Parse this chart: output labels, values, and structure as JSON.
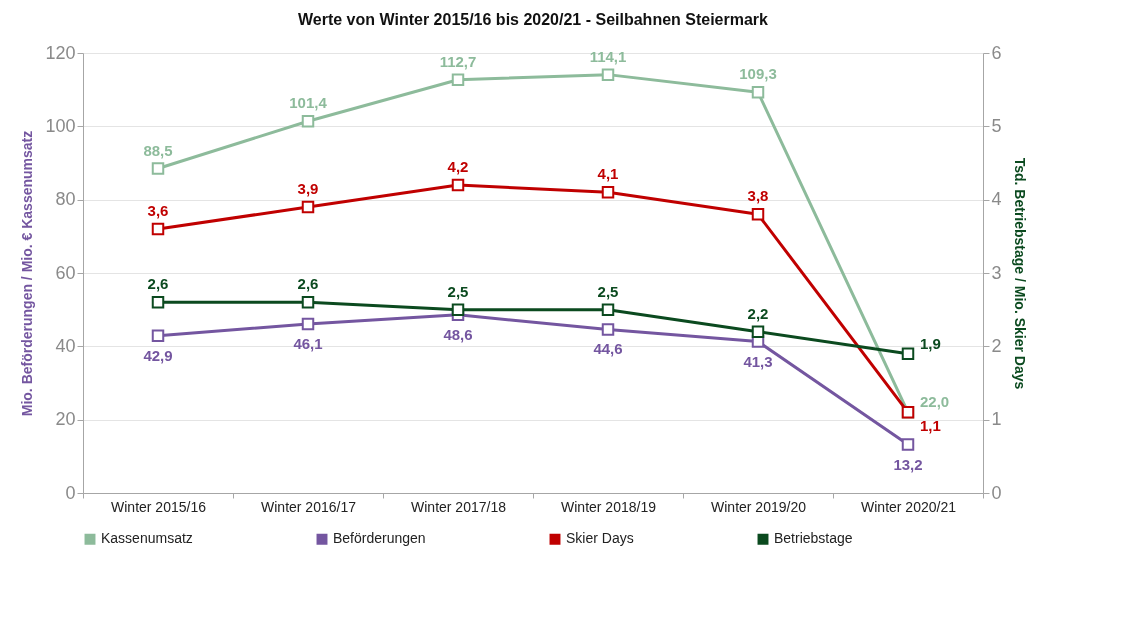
{
  "chart_data": {
    "type": "line",
    "title": "Werte von Winter 2015/16 bis 2020/21 - Seilbahnen Steiermark",
    "ylabel": "Mio. Beförderungen / Mio. € Kassenumsatz",
    "y2label": "Tsd. Betriebstage / Mio. Skier Days",
    "categories": [
      "Winter 2015/16",
      "Winter 2016/17",
      "Winter 2017/18",
      "Winter 2018/19",
      "Winter 2019/20",
      "Winter 2020/21"
    ],
    "series": [
      {
        "name": "Kassenumsatz",
        "color": "#8dbb9b",
        "values": [
          88.5,
          101.4,
          112.7,
          114.1,
          109.3,
          22.0
        ],
        "value_labels": [
          "88,5",
          "101,4",
          "112,7",
          "114,1",
          "109,3",
          "22,0"
        ]
      },
      {
        "name": "Beförderungen",
        "color": "#7456a0",
        "values": [
          42.9,
          46.1,
          48.6,
          44.6,
          41.3,
          13.2
        ],
        "value_labels": [
          "42,9",
          "46,1",
          "48,6",
          "44,6",
          "41,3",
          "13,2"
        ]
      },
      {
        "name": "Skier Days",
        "color": "#c00000",
        "axis": "y2",
        "values": [
          3.6,
          3.9,
          4.2,
          4.1,
          3.8,
          1.1
        ],
        "value_labels": [
          "3,6",
          "3,9",
          "4,2",
          "4,1",
          "3,8",
          "1,1"
        ]
      },
      {
        "name": "Betriebstage",
        "color": "#0b4a1f",
        "axis": "y2",
        "values": [
          2.6,
          2.6,
          2.5,
          2.5,
          2.2,
          1.9
        ],
        "value_labels": [
          "2,6",
          "2,6",
          "2,5",
          "2,5",
          "2,2",
          "1,9"
        ]
      }
    ],
    "ylim": [
      0,
      120
    ],
    "yticks": [
      0,
      20,
      40,
      60,
      80,
      100,
      120
    ],
    "y2lim": [
      0,
      6
    ],
    "y2ticks": [
      0,
      1,
      2,
      3,
      4,
      5,
      6
    ],
    "grid": "y",
    "legend": "bottom",
    "marker": "square"
  }
}
